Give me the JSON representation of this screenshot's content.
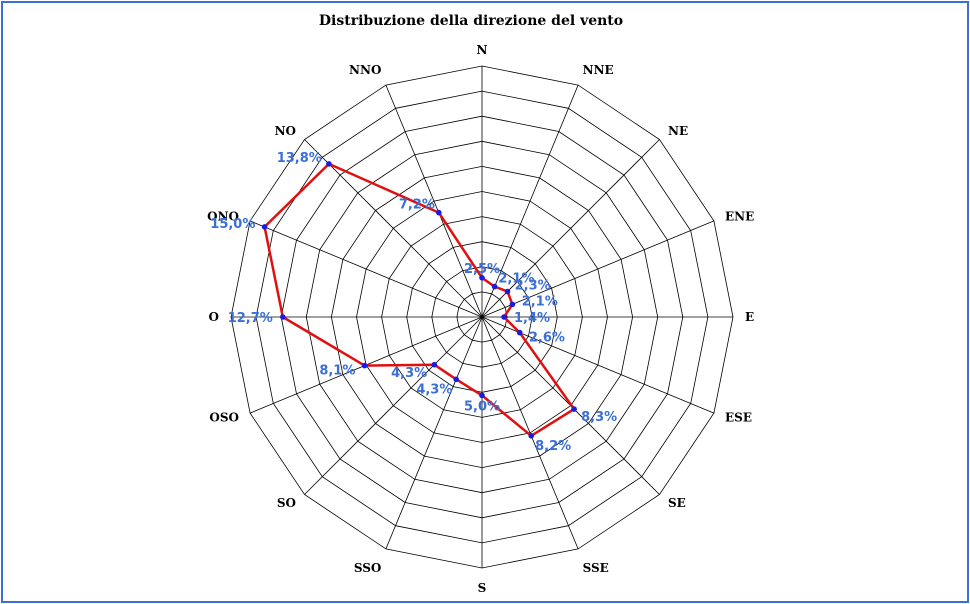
{
  "chart_data": {
    "type": "radar",
    "title": "Distribuzione della direzione del vento",
    "directions": [
      "N",
      "NNE",
      "NE",
      "ENE",
      "E",
      "ESE",
      "SE",
      "SSE",
      "S",
      "SSO",
      "SO",
      "OSO",
      "O",
      "ONO",
      "NO",
      "NNO"
    ],
    "values": [
      2.5,
      2.1,
      2.3,
      2.1,
      1.4,
      2.6,
      8.3,
      8.2,
      5.0,
      4.3,
      4.3,
      8.1,
      12.7,
      15.0,
      13.8,
      7.2
    ],
    "value_labels": [
      "2,5%",
      "2,1%",
      "2,3%",
      "2,1%",
      "1,4%",
      "2,6%",
      "8,3%",
      "8,2%",
      "5,0%",
      "4,3%",
      "4,3%",
      "8,1%",
      "12,7%",
      "15,0%",
      "13,8%",
      "7,2%"
    ],
    "rmax": 16,
    "rings": 10,
    "grid": true,
    "colors": {
      "series_line": "#e01010",
      "markers": "#1a1ae0",
      "value_labels": "#3a6fd8",
      "frame": "#3b6fd8",
      "grid": "#000000"
    }
  }
}
